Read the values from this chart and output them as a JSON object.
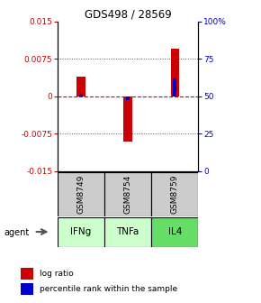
{
  "title": "GDS498 / 28569",
  "samples": [
    "GSM8749",
    "GSM8754",
    "GSM8759"
  ],
  "agents": [
    "IFNg",
    "TNFa",
    "IL4"
  ],
  "log_ratios": [
    0.004,
    -0.009,
    0.0095
  ],
  "percentile_ranks": [
    51.0,
    47.5,
    62.0
  ],
  "ylim_left": [
    -0.015,
    0.015
  ],
  "ylim_right": [
    0,
    100
  ],
  "yticks_left": [
    -0.015,
    -0.0075,
    0,
    0.0075,
    0.015
  ],
  "yticks_right": [
    0,
    25,
    50,
    75,
    100
  ],
  "ytick_left_labels": [
    "-0.015",
    "-0.0075",
    "0",
    "0.0075",
    "0.015"
  ],
  "ytick_right_labels": [
    "0",
    "25",
    "50",
    "75",
    "100%"
  ],
  "bar_width": 0.18,
  "blue_bar_width": 0.08,
  "red_color": "#cc0000",
  "blue_color": "#0000cc",
  "grid_color": "#555555",
  "agent_colors": [
    "#ccffcc",
    "#ccffcc",
    "#66dd66"
  ],
  "sample_bg_color": "#cccccc",
  "zero_line_color": "#dd0000"
}
